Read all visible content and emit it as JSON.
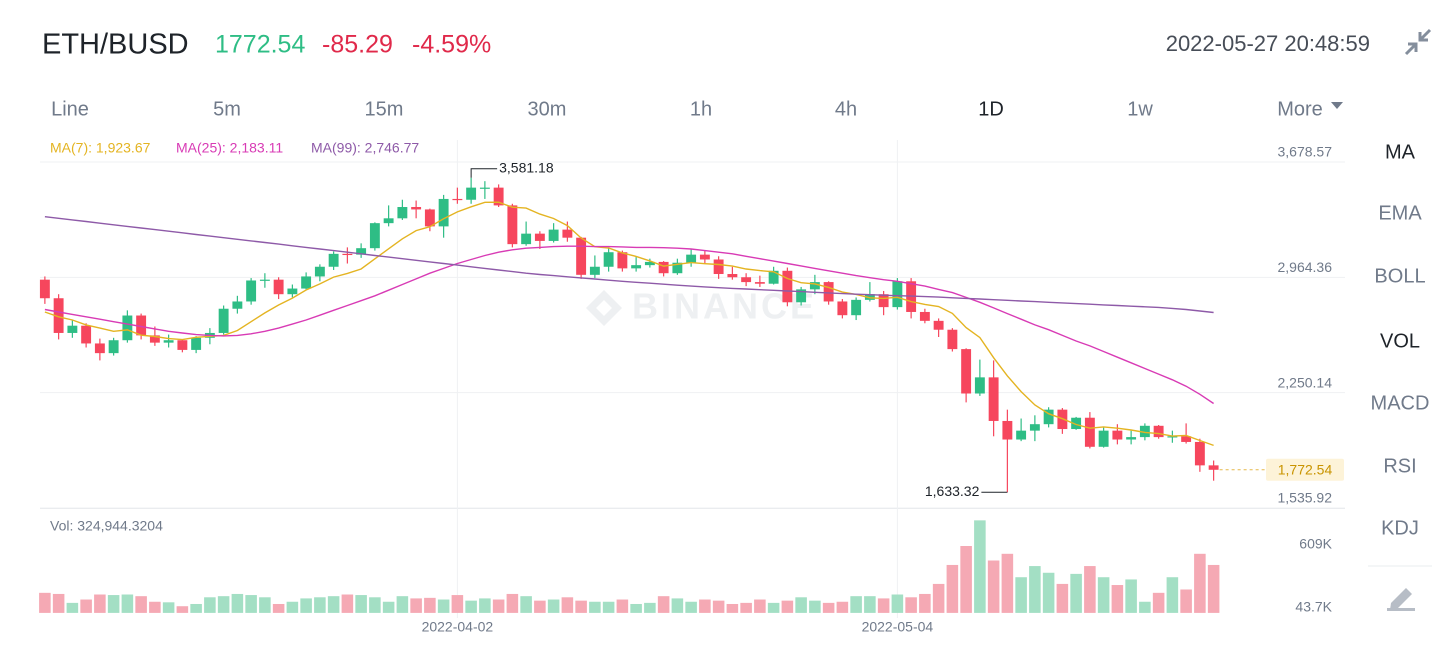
{
  "header": {
    "symbol": "ETH/BUSD",
    "price": "1772.54",
    "change": "-85.29",
    "change_pct": "-4.59%",
    "time": "2022-05-27 20:48:59"
  },
  "intervals": [
    "Line",
    "5m",
    "15m",
    "30m",
    "1h",
    "4h",
    "1D",
    "1w",
    "More"
  ],
  "indicators": [
    "MA",
    "EMA",
    "BOLL",
    "VOL",
    "MACD",
    "RSI",
    "KDJ"
  ],
  "chart_data": {
    "type": "candlestick",
    "categories": [
      null,
      null,
      null,
      null,
      null,
      null,
      null,
      null,
      null,
      null,
      null,
      null,
      null,
      null,
      null,
      null,
      null,
      null,
      null,
      null,
      null,
      null,
      null,
      null,
      null,
      null,
      null,
      null,
      null,
      null,
      "2022-04-02",
      null,
      null,
      null,
      null,
      null,
      null,
      null,
      null,
      null,
      null,
      null,
      null,
      null,
      null,
      null,
      null,
      null,
      null,
      null,
      null,
      null,
      null,
      null,
      null,
      null,
      null,
      null,
      null,
      null,
      null,
      null,
      "2022-05-04",
      null,
      null,
      null,
      null,
      null,
      null,
      null,
      null,
      null,
      null,
      null,
      null,
      null,
      null,
      null,
      null,
      null,
      null,
      null,
      null,
      null,
      null,
      null
    ],
    "open": [
      2950,
      2835,
      2620,
      2665,
      2555,
      2495,
      2575,
      2728,
      2605,
      2560,
      2575,
      2515,
      2590,
      2620,
      2770,
      2815,
      2945,
      2950,
      2860,
      2895,
      2970,
      3030,
      3110,
      3105,
      3145,
      3300,
      3330,
      3400,
      3385,
      3280,
      3450,
      3445,
      3520,
      3520,
      3410,
      3170,
      3235,
      3190,
      3260,
      3210,
      2980,
      3030,
      3120,
      3020,
      3040,
      3060,
      2990,
      3055,
      3105,
      3075,
      2985,
      2965,
      2935,
      2925,
      3005,
      2810,
      2890,
      2935,
      2815,
      2730,
      2825,
      2860,
      2780,
      2940,
      2750,
      2695,
      2640,
      2520,
      2245,
      2345,
      2075,
      1960,
      2015,
      2055,
      2145,
      2025,
      2095,
      1915,
      2015,
      1960,
      1975,
      2045,
      1975,
      1980,
      1945,
      1800
    ],
    "high": [
      2970,
      2860,
      2700,
      2680,
      2585,
      2590,
      2760,
      2740,
      2660,
      2610,
      2580,
      2600,
      2650,
      2790,
      2850,
      2960,
      2990,
      2965,
      2920,
      2995,
      3045,
      3125,
      3150,
      3175,
      3305,
      3410,
      3445,
      3440,
      3390,
      3475,
      3520,
      3581.18,
      3560,
      3540,
      3420,
      3310,
      3250,
      3300,
      3310,
      3215,
      3100,
      3150,
      3130,
      3090,
      3080,
      3065,
      3080,
      3140,
      3130,
      3095,
      3030,
      2990,
      2975,
      3030,
      3025,
      2905,
      2980,
      2940,
      2830,
      2840,
      2935,
      2880,
      2960,
      2960,
      2770,
      2710,
      2650,
      2525,
      2455,
      2450,
      2145,
      2090,
      2110,
      2160,
      2155,
      2100,
      2130,
      2035,
      2055,
      2015,
      2060,
      2050,
      2015,
      2060,
      1965,
      1830
    ],
    "low": [
      2800,
      2580,
      2590,
      2530,
      2450,
      2480,
      2560,
      2580,
      2540,
      2530,
      2500,
      2495,
      2550,
      2610,
      2740,
      2795,
      2900,
      2830,
      2840,
      2890,
      2940,
      3010,
      3050,
      3085,
      3130,
      3280,
      3320,
      3330,
      3250,
      3210,
      3420,
      3420,
      3450,
      3400,
      3150,
      3160,
      3140,
      3180,
      3185,
      2955,
      2960,
      3000,
      3000,
      3000,
      3025,
      2970,
      2980,
      3030,
      3050,
      2955,
      2950,
      2910,
      2905,
      2920,
      2785,
      2790,
      2860,
      2795,
      2710,
      2700,
      2815,
      2730,
      2765,
      2710,
      2680,
      2595,
      2505,
      2190,
      2230,
      1980,
      1633.32,
      1950,
      1950,
      2035,
      1995,
      2020,
      1905,
      1910,
      1930,
      1930,
      1955,
      1965,
      1940,
      1935,
      1760,
      1705
    ],
    "close": [
      2835,
      2620,
      2665,
      2555,
      2495,
      2575,
      2728,
      2605,
      2560,
      2575,
      2515,
      2590,
      2620,
      2770,
      2815,
      2945,
      2950,
      2860,
      2895,
      2970,
      3030,
      3110,
      3105,
      3145,
      3300,
      3330,
      3400,
      3385,
      3280,
      3450,
      3445,
      3520,
      3520,
      3410,
      3170,
      3235,
      3190,
      3260,
      3210,
      2980,
      3030,
      3120,
      3020,
      3040,
      3060,
      2990,
      3055,
      3105,
      3075,
      2985,
      2965,
      2935,
      2925,
      3005,
      2810,
      2890,
      2935,
      2815,
      2730,
      2825,
      2860,
      2780,
      2940,
      2750,
      2695,
      2640,
      2520,
      2245,
      2345,
      2075,
      1960,
      2015,
      2055,
      2145,
      2025,
      2095,
      1915,
      2015,
      1960,
      1975,
      2045,
      1975,
      1980,
      1945,
      1800,
      1772.54
    ],
    "colors": {
      "up": "#2ebd85",
      "down": "#f6465d",
      "up_volume": "#a3dfc4",
      "down_volume": "#f5a9b4"
    },
    "series": [
      {
        "name": "MA(7): 1,923.67",
        "color": "#e4b422",
        "values": [
          2750,
          2720,
          2700,
          2670,
          2650,
          2630,
          2639,
          2606,
          2598,
          2585,
          2579,
          2593,
          2599,
          2605,
          2635,
          2690,
          2744,
          2793,
          2836,
          2886,
          2924,
          2966,
          2989,
          3016,
          3079,
          3141,
          3203,
          3254,
          3278,
          3327,
          3370,
          3401,
          3429,
          3430,
          3399,
          3393,
          3356,
          3329,
          3285,
          3208,
          3154,
          3146,
          3116,
          3094,
          3066,
          3034,
          3045,
          3056,
          3049,
          3044,
          3034,
          3016,
          3006,
          2999,
          2957,
          2931,
          2924,
          2902,
          2873,
          2859,
          2838,
          2834,
          2841,
          2814,
          2797,
          2784,
          2741,
          2653,
          2591,
          2467,
          2354,
          2257,
          2174,
          2120,
          2089,
          2053,
          2030,
          2038,
          2030,
          2019,
          2004,
          1997,
          1981,
          1985,
          1954,
          1923.67
        ]
      },
      {
        "name": "MA(25): 2,183.11",
        "color": "#d83bb5",
        "values": [
          2765,
          2750,
          2735,
          2720,
          2705,
          2690,
          2675,
          2660,
          2645,
          2630,
          2620,
          2610,
          2605,
          2602,
          2605,
          2615,
          2630,
          2650,
          2675,
          2700,
          2730,
          2760,
          2790,
          2820,
          2850,
          2885,
          2920,
          2955,
          2990,
          3020,
          3050,
          3075,
          3100,
          3120,
          3135,
          3145,
          3150,
          3155,
          3157,
          3157,
          3155,
          3155,
          3153,
          3150,
          3150,
          3148,
          3145,
          3140,
          3130,
          3120,
          3110,
          3095,
          3080,
          3065,
          3050,
          3035,
          3020,
          3005,
          2990,
          2975,
          2962,
          2950,
          2940,
          2925,
          2910,
          2890,
          2870,
          2840,
          2810,
          2775,
          2740,
          2705,
          2670,
          2640,
          2605,
          2570,
          2540,
          2505,
          2470,
          2435,
          2400,
          2365,
          2330,
          2290,
          2240,
          2183.11
        ]
      },
      {
        "name": "MA(99): 2,746.77",
        "color": "#8e5aa8",
        "values": [
          3340,
          3330,
          3320,
          3310,
          3300,
          3290,
          3280,
          3270,
          3260,
          3250,
          3240,
          3230,
          3220,
          3210,
          3200,
          3190,
          3180,
          3170,
          3160,
          3150,
          3140,
          3130,
          3120,
          3110,
          3100,
          3090,
          3080,
          3070,
          3060,
          3050,
          3040,
          3030,
          3020,
          3010,
          3000,
          2990,
          2982,
          2975,
          2968,
          2961,
          2954,
          2947,
          2940,
          2934,
          2928,
          2922,
          2916,
          2910,
          2905,
          2900,
          2896,
          2892,
          2888,
          2884,
          2880,
          2876,
          2872,
          2868,
          2864,
          2860,
          2857,
          2854,
          2851,
          2848,
          2845,
          2842,
          2838,
          2834,
          2830,
          2826,
          2822,
          2818,
          2814,
          2810,
          2806,
          2802,
          2798,
          2794,
          2790,
          2786,
          2782,
          2778,
          2772,
          2765,
          2756,
          2746.77
        ]
      }
    ],
    "ylim": [
      1535.92,
      3815
    ],
    "yticks": [
      {
        "value": 3678.57,
        "label": "3,678.57"
      },
      {
        "value": 2964.36,
        "label": "2,964.36"
      },
      {
        "value": 2250.14,
        "label": "2,250.14"
      },
      {
        "value": 1535.92,
        "label": "1,535.92"
      }
    ],
    "grid": true,
    "high_marker": {
      "value": 3581.18,
      "label": "3,581.18"
    },
    "low_marker": {
      "value": 1633.32,
      "label": "1,633.32"
    },
    "last_price": {
      "value": 1772.54,
      "label": "1,772.54"
    },
    "watermark": "BINANCE",
    "volume": {
      "label": "Vol: 324,944.3204",
      "values": [
        180000,
        170000,
        90000,
        120000,
        165000,
        160000,
        165000,
        150000,
        100000,
        95000,
        60000,
        80000,
        140000,
        150000,
        170000,
        160000,
        140000,
        80000,
        100000,
        130000,
        140000,
        150000,
        165000,
        160000,
        140000,
        100000,
        150000,
        130000,
        135000,
        120000,
        160000,
        110000,
        130000,
        120000,
        170000,
        150000,
        110000,
        120000,
        140000,
        110000,
        100000,
        100000,
        120000,
        80000,
        90000,
        150000,
        130000,
        100000,
        120000,
        110000,
        80000,
        90000,
        120000,
        90000,
        110000,
        140000,
        110000,
        90000,
        100000,
        150000,
        150000,
        130000,
        165000,
        140000,
        170000,
        260000,
        430000,
        600000,
        830000,
        470000,
        530000,
        320000,
        420000,
        360000,
        260000,
        350000,
        420000,
        320000,
        250000,
        300000,
        100000,
        180000,
        320000,
        210000,
        530000,
        430000
      ],
      "ylim": [
        -45700,
        878000
      ],
      "yticks": [
        {
          "value": 609000,
          "label": "609K"
        },
        {
          "value": 43700,
          "label": "43.7K"
        }
      ]
    }
  }
}
